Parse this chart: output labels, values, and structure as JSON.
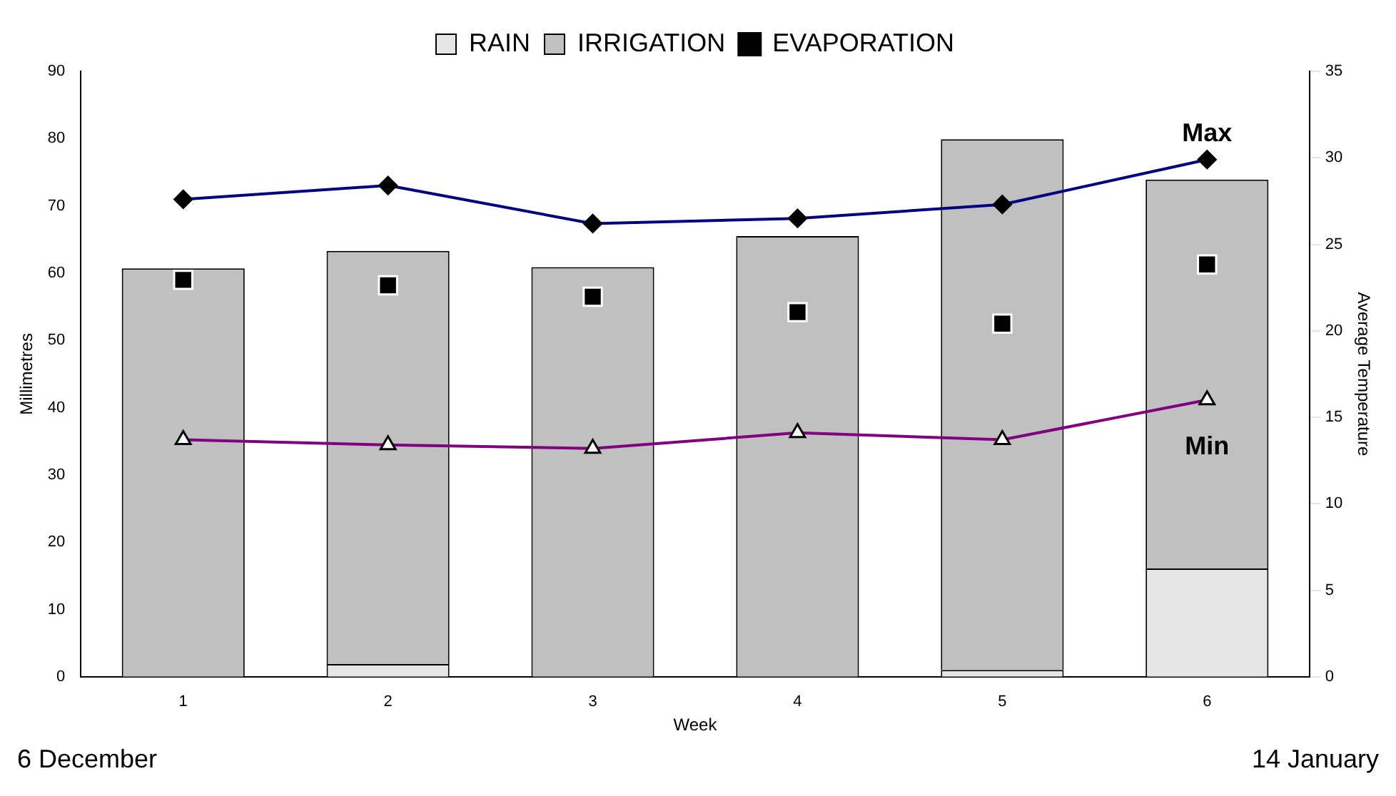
{
  "chart_data": {
    "type": "bar",
    "stacked": true,
    "categories": [
      "1",
      "2",
      "3",
      "4",
      "5",
      "6"
    ],
    "xlabel": "Week",
    "ylabel": "Millimetres",
    "y2label": "Average Temperature",
    "ylim": [
      0,
      90
    ],
    "yticks": [
      0,
      10,
      20,
      30,
      40,
      50,
      60,
      70,
      80,
      90
    ],
    "y2lim": [
      0,
      35
    ],
    "y2ticks": [
      0,
      5,
      10,
      15,
      20,
      25,
      30,
      35
    ],
    "grid": false,
    "legend": "top",
    "series": [
      {
        "name": "RAIN",
        "color": "#e6e6e6",
        "values": [
          0,
          1.9,
          0,
          0,
          1,
          16.1
        ]
      },
      {
        "name": "IRRIGATION",
        "color": "#c0c0c0",
        "values": [
          60.7,
          61.4,
          60.9,
          65.5,
          78.9,
          57.8
        ]
      },
      {
        "name": "EVAPORATION",
        "type": "scatter",
        "marker": "square",
        "color": "#000000",
        "values": [
          59,
          58.2,
          56.5,
          54.2,
          52.5,
          61.3
        ]
      },
      {
        "name": "Max",
        "type": "line",
        "axis": "y2",
        "marker": "diamond",
        "color": "#000080",
        "values": [
          27.6,
          28.4,
          26.2,
          26.5,
          27.3,
          29.9
        ]
      },
      {
        "name": "Min",
        "type": "line",
        "axis": "y2",
        "marker": "triangle",
        "color": "#800080",
        "values": [
          13.7,
          13.4,
          13.2,
          14.1,
          13.7,
          16.0
        ]
      }
    ],
    "annotations": [
      "6 December",
      "14 January"
    ]
  }
}
